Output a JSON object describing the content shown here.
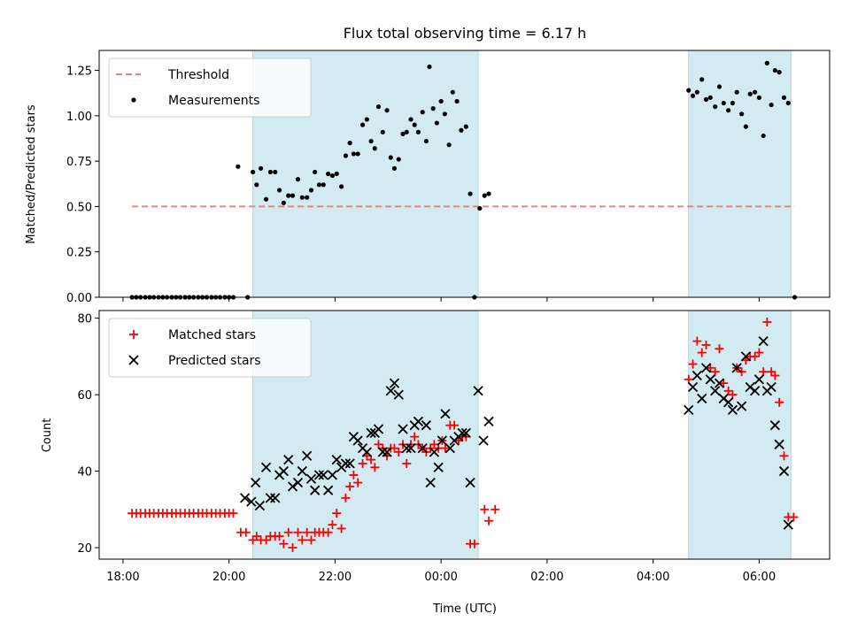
{
  "chart_data": {
    "title": "Flux total observing time = 6.17 h",
    "xlabel": "Time (UTC)",
    "x_unit": "hours since 18:00 UTC",
    "xlim": [
      -0.45,
      13.33
    ],
    "x_ticks": [
      {
        "value": 0,
        "label": "18:00"
      },
      {
        "value": 2,
        "label": "20:00"
      },
      {
        "value": 4,
        "label": "22:00"
      },
      {
        "value": 6,
        "label": "00:00"
      },
      {
        "value": 8,
        "label": "02:00"
      },
      {
        "value": 10,
        "label": "04:00"
      },
      {
        "value": 12,
        "label": "06:00"
      }
    ],
    "shaded_spans": [
      [
        2.45,
        6.7
      ],
      [
        10.67,
        12.6
      ]
    ],
    "colors": {
      "threshold": "#f08080",
      "matched": "#ff0000",
      "predicted": "#000000",
      "shade": "#add8e6"
    },
    "top": {
      "type": "scatter",
      "ylabel": "Matched/Predicted stars",
      "ylim": [
        0,
        1.36
      ],
      "y_ticks": [
        "0.00",
        "0.25",
        "0.50",
        "0.75",
        "1.00",
        "1.25"
      ],
      "threshold": 0.5,
      "threshold_x": [
        0.17,
        12.67
      ],
      "legend": [
        {
          "label": "Threshold",
          "kind": "dash"
        },
        {
          "label": "Measurements",
          "kind": "dot"
        }
      ],
      "points": [
        [
          0.17,
          0
        ],
        [
          0.25,
          0
        ],
        [
          0.33,
          0
        ],
        [
          0.42,
          0
        ],
        [
          0.5,
          0
        ],
        [
          0.58,
          0
        ],
        [
          0.67,
          0
        ],
        [
          0.75,
          0
        ],
        [
          0.83,
          0
        ],
        [
          0.92,
          0
        ],
        [
          1.0,
          0
        ],
        [
          1.08,
          0
        ],
        [
          1.17,
          0
        ],
        [
          1.25,
          0
        ],
        [
          1.33,
          0
        ],
        [
          1.42,
          0
        ],
        [
          1.5,
          0
        ],
        [
          1.58,
          0
        ],
        [
          1.67,
          0
        ],
        [
          1.75,
          0
        ],
        [
          1.83,
          0
        ],
        [
          1.92,
          0
        ],
        [
          2.0,
          0
        ],
        [
          2.08,
          0
        ],
        [
          2.17,
          0.72
        ],
        [
          2.35,
          0
        ],
        [
          2.45,
          0.69
        ],
        [
          2.52,
          0.62
        ],
        [
          2.6,
          0.71
        ],
        [
          2.7,
          0.54
        ],
        [
          2.78,
          0.69
        ],
        [
          2.87,
          0.69
        ],
        [
          2.95,
          0.59
        ],
        [
          3.03,
          0.52
        ],
        [
          3.12,
          0.56
        ],
        [
          3.2,
          0.56
        ],
        [
          3.3,
          0.65
        ],
        [
          3.38,
          0.55
        ],
        [
          3.47,
          0.55
        ],
        [
          3.55,
          0.59
        ],
        [
          3.62,
          0.69
        ],
        [
          3.7,
          0.62
        ],
        [
          3.78,
          0.62
        ],
        [
          3.87,
          0.68
        ],
        [
          3.95,
          0.67
        ],
        [
          4.03,
          0.68
        ],
        [
          4.12,
          0.61
        ],
        [
          4.2,
          0.78
        ],
        [
          4.28,
          0.85
        ],
        [
          4.35,
          0.79
        ],
        [
          4.43,
          0.79
        ],
        [
          4.52,
          0.95
        ],
        [
          4.6,
          0.98
        ],
        [
          4.68,
          0.86
        ],
        [
          4.75,
          0.82
        ],
        [
          4.82,
          1.05
        ],
        [
          4.9,
          0.91
        ],
        [
          4.98,
          1.03
        ],
        [
          5.05,
          0.77
        ],
        [
          5.12,
          0.71
        ],
        [
          5.2,
          0.76
        ],
        [
          5.28,
          0.9
        ],
        [
          5.35,
          0.91
        ],
        [
          5.43,
          0.98
        ],
        [
          5.5,
          0.95
        ],
        [
          5.57,
          0.91
        ],
        [
          5.65,
          1.02
        ],
        [
          5.72,
          0.86
        ],
        [
          5.78,
          1.27
        ],
        [
          5.85,
          1.04
        ],
        [
          5.92,
          0.96
        ],
        [
          6.0,
          1.08
        ],
        [
          6.07,
          1.01
        ],
        [
          6.15,
          0.84
        ],
        [
          6.22,
          1.13
        ],
        [
          6.3,
          1.08
        ],
        [
          6.38,
          0.92
        ],
        [
          6.47,
          0.94
        ],
        [
          6.55,
          0.57
        ],
        [
          6.63,
          0
        ],
        [
          6.73,
          0.49
        ],
        [
          6.82,
          0.56
        ],
        [
          6.9,
          0.57
        ],
        [
          10.67,
          1.14
        ],
        [
          10.75,
          1.11
        ],
        [
          10.83,
          1.13
        ],
        [
          10.92,
          1.2
        ],
        [
          11.0,
          1.09
        ],
        [
          11.08,
          1.1
        ],
        [
          11.17,
          1.05
        ],
        [
          11.25,
          1.16
        ],
        [
          11.33,
          1.07
        ],
        [
          11.42,
          1.03
        ],
        [
          11.5,
          1.07
        ],
        [
          11.58,
          1.13
        ],
        [
          11.67,
          1.01
        ],
        [
          11.75,
          0.94
        ],
        [
          11.83,
          1.12
        ],
        [
          11.92,
          1.13
        ],
        [
          12.0,
          1.1
        ],
        [
          12.08,
          0.89
        ],
        [
          12.15,
          1.29
        ],
        [
          12.23,
          1.06
        ],
        [
          12.3,
          1.25
        ],
        [
          12.38,
          1.24
        ],
        [
          12.47,
          1.1
        ],
        [
          12.55,
          1.07
        ],
        [
          12.67,
          0
        ]
      ]
    },
    "bottom": {
      "type": "scatter",
      "ylabel": "Count",
      "ylim": [
        17,
        82
      ],
      "y_ticks": [
        "20",
        "40",
        "60",
        "80"
      ],
      "legend": [
        {
          "label": "Matched stars",
          "kind": "plus"
        },
        {
          "label": "Predicted stars",
          "kind": "cross"
        }
      ],
      "matched": [
        [
          0.17,
          29
        ],
        [
          0.25,
          29
        ],
        [
          0.33,
          29
        ],
        [
          0.42,
          29
        ],
        [
          0.5,
          29
        ],
        [
          0.58,
          29
        ],
        [
          0.67,
          29
        ],
        [
          0.75,
          29
        ],
        [
          0.83,
          29
        ],
        [
          0.92,
          29
        ],
        [
          1.0,
          29
        ],
        [
          1.08,
          29
        ],
        [
          1.17,
          29
        ],
        [
          1.25,
          29
        ],
        [
          1.33,
          29
        ],
        [
          1.42,
          29
        ],
        [
          1.5,
          29
        ],
        [
          1.58,
          29
        ],
        [
          1.67,
          29
        ],
        [
          1.75,
          29
        ],
        [
          1.83,
          29
        ],
        [
          1.92,
          29
        ],
        [
          2.0,
          29
        ],
        [
          2.08,
          29
        ],
        [
          2.22,
          24
        ],
        [
          2.32,
          24
        ],
        [
          2.45,
          22
        ],
        [
          2.52,
          23
        ],
        [
          2.6,
          22
        ],
        [
          2.7,
          22
        ],
        [
          2.78,
          23
        ],
        [
          2.87,
          23
        ],
        [
          2.95,
          23
        ],
        [
          3.03,
          21
        ],
        [
          3.12,
          24
        ],
        [
          3.2,
          20
        ],
        [
          3.3,
          24
        ],
        [
          3.38,
          22
        ],
        [
          3.47,
          24
        ],
        [
          3.55,
          22
        ],
        [
          3.62,
          24
        ],
        [
          3.7,
          24
        ],
        [
          3.78,
          24
        ],
        [
          3.87,
          24
        ],
        [
          3.95,
          26
        ],
        [
          4.03,
          29
        ],
        [
          4.12,
          25
        ],
        [
          4.2,
          33
        ],
        [
          4.28,
          36
        ],
        [
          4.35,
          39
        ],
        [
          4.43,
          37
        ],
        [
          4.52,
          42
        ],
        [
          4.6,
          44
        ],
        [
          4.68,
          43
        ],
        [
          4.75,
          41
        ],
        [
          4.82,
          47
        ],
        [
          4.9,
          46
        ],
        [
          4.98,
          44
        ],
        [
          5.05,
          46
        ],
        [
          5.12,
          46
        ],
        [
          5.2,
          45
        ],
        [
          5.28,
          47
        ],
        [
          5.35,
          42
        ],
        [
          5.43,
          47
        ],
        [
          5.5,
          49
        ],
        [
          5.57,
          47
        ],
        [
          5.65,
          46
        ],
        [
          5.72,
          45
        ],
        [
          5.8,
          46
        ],
        [
          5.87,
          47
        ],
        [
          5.95,
          46
        ],
        [
          6.02,
          48
        ],
        [
          6.08,
          46
        ],
        [
          6.17,
          52
        ],
        [
          6.25,
          52
        ],
        [
          6.33,
          48
        ],
        [
          6.4,
          49
        ],
        [
          6.47,
          49
        ],
        [
          6.55,
          21
        ],
        [
          6.63,
          21
        ],
        [
          6.82,
          30
        ],
        [
          6.9,
          27
        ],
        [
          7.02,
          30
        ],
        [
          10.67,
          64
        ],
        [
          10.75,
          68
        ],
        [
          10.83,
          74
        ],
        [
          10.92,
          71
        ],
        [
          11.0,
          73
        ],
        [
          11.08,
          67
        ],
        [
          11.17,
          66
        ],
        [
          11.25,
          72
        ],
        [
          11.33,
          63
        ],
        [
          11.42,
          61
        ],
        [
          11.5,
          60
        ],
        [
          11.58,
          67
        ],
        [
          11.67,
          66
        ],
        [
          11.75,
          69
        ],
        [
          11.83,
          70
        ],
        [
          11.92,
          70
        ],
        [
          12.0,
          71
        ],
        [
          12.08,
          66
        ],
        [
          12.15,
          79
        ],
        [
          12.23,
          66
        ],
        [
          12.3,
          65
        ],
        [
          12.38,
          58
        ],
        [
          12.47,
          44
        ],
        [
          12.55,
          28
        ],
        [
          12.65,
          28
        ]
      ],
      "predicted": [
        [
          2.3,
          33
        ],
        [
          2.42,
          32
        ],
        [
          2.5,
          37
        ],
        [
          2.58,
          31
        ],
        [
          2.7,
          41
        ],
        [
          2.78,
          33
        ],
        [
          2.87,
          33
        ],
        [
          2.95,
          39
        ],
        [
          3.03,
          40
        ],
        [
          3.12,
          43
        ],
        [
          3.2,
          36
        ],
        [
          3.3,
          37
        ],
        [
          3.38,
          40
        ],
        [
          3.47,
          44
        ],
        [
          3.55,
          38
        ],
        [
          3.62,
          35
        ],
        [
          3.7,
          39
        ],
        [
          3.78,
          39
        ],
        [
          3.87,
          35
        ],
        [
          3.95,
          39
        ],
        [
          4.03,
          43
        ],
        [
          4.12,
          41
        ],
        [
          4.2,
          42
        ],
        [
          4.28,
          42
        ],
        [
          4.35,
          49
        ],
        [
          4.43,
          48
        ],
        [
          4.52,
          46
        ],
        [
          4.6,
          45
        ],
        [
          4.68,
          50
        ],
        [
          4.75,
          50
        ],
        [
          4.82,
          51
        ],
        [
          4.9,
          45
        ],
        [
          4.98,
          45
        ],
        [
          5.05,
          61
        ],
        [
          5.12,
          63
        ],
        [
          5.2,
          60
        ],
        [
          5.28,
          51
        ],
        [
          5.35,
          46
        ],
        [
          5.43,
          46
        ],
        [
          5.5,
          52
        ],
        [
          5.57,
          53
        ],
        [
          5.65,
          46
        ],
        [
          5.72,
          52
        ],
        [
          5.8,
          37
        ],
        [
          5.87,
          45
        ],
        [
          5.95,
          41
        ],
        [
          6.02,
          48
        ],
        [
          6.08,
          55
        ],
        [
          6.17,
          46
        ],
        [
          6.25,
          48
        ],
        [
          6.33,
          49
        ],
        [
          6.4,
          50
        ],
        [
          6.47,
          50
        ],
        [
          6.55,
          37
        ],
        [
          6.7,
          61
        ],
        [
          6.8,
          48
        ],
        [
          6.9,
          53
        ],
        [
          10.67,
          56
        ],
        [
          10.75,
          62
        ],
        [
          10.83,
          65
        ],
        [
          10.92,
          59
        ],
        [
          11.0,
          67
        ],
        [
          11.08,
          64
        ],
        [
          11.17,
          61
        ],
        [
          11.25,
          63
        ],
        [
          11.33,
          59
        ],
        [
          11.42,
          58
        ],
        [
          11.5,
          56
        ],
        [
          11.58,
          67
        ],
        [
          11.67,
          57
        ],
        [
          11.75,
          70
        ],
        [
          11.83,
          62
        ],
        [
          11.92,
          61
        ],
        [
          12.0,
          64
        ],
        [
          12.08,
          74
        ],
        [
          12.15,
          61
        ],
        [
          12.23,
          62
        ],
        [
          12.3,
          52
        ],
        [
          12.38,
          47
        ],
        [
          12.47,
          40
        ],
        [
          12.55,
          26
        ]
      ]
    }
  }
}
